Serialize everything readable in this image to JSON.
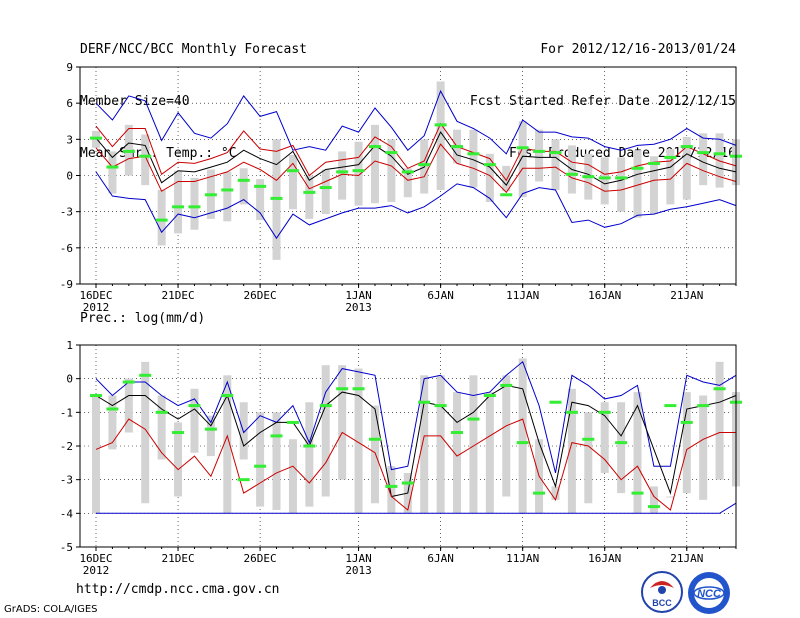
{
  "header": {
    "title": "DERF/NCC/BCC Monthly Forecast",
    "member_size": "Member Size=40",
    "variable": "Mean Surf. Temp.: °C",
    "forecast_period": "For 2012/12/16-2013/01/24",
    "start_refer_date": "Fcst Started Refer Date 2012/12/15",
    "produced_date": "Fcst Produced Date 2012/12/16"
  },
  "footer": {
    "url": "http://cmdp.ncc.cma.gov.cn",
    "credit": "GrADS: COLA/IGES",
    "logo_bcc": "BCC",
    "logo_ncc": "NCC"
  },
  "colors": {
    "ensemble_bar": "#d3d3d3",
    "mean_line": "#000000",
    "spread_line": "#cc0000",
    "extreme_line": "#0000cc",
    "median_mark": "#33ee33",
    "grid": "#000000"
  },
  "chart_data": [
    {
      "type": "line",
      "id": "temperature",
      "title": "Mean Surf. Temp.: °C",
      "days": 40,
      "x_tick_labels": [
        {
          "day": 1,
          "label": "16DEC",
          "sub": "2012"
        },
        {
          "day": 6,
          "label": "21DEC",
          "sub": ""
        },
        {
          "day": 11,
          "label": "26DEC",
          "sub": ""
        },
        {
          "day": 17,
          "label": "1JAN",
          "sub": "2013"
        },
        {
          "day": 22,
          "label": "6JAN",
          "sub": ""
        },
        {
          "day": 27,
          "label": "11JAN",
          "sub": ""
        },
        {
          "day": 32,
          "label": "16JAN",
          "sub": ""
        },
        {
          "day": 37,
          "label": "21JAN",
          "sub": ""
        }
      ],
      "ylim": [
        -9,
        9
      ],
      "y_ticks": [
        -9,
        -6,
        -3,
        0,
        3,
        6,
        9
      ],
      "grid": true,
      "bar_low": [
        2.3,
        -1.5,
        0.0,
        -0.8,
        -5.8,
        -4.8,
        -4.5,
        -3.6,
        -3.8,
        -2.4,
        -3.7,
        -7.0,
        -2.8,
        -3.6,
        -3.2,
        -2.0,
        -2.5,
        -2.3,
        -2.2,
        -1.8,
        -1.5,
        -1.2,
        1.0,
        -1.0,
        -2.2,
        -1.3,
        -1.8,
        -0.5,
        -1.2,
        -1.5,
        -2.0,
        -2.4,
        -3.0,
        -3.5,
        -3.2,
        -2.4,
        -2.0,
        -0.8,
        -1.0,
        -0.8
      ],
      "bar_high": [
        3.7,
        2.0,
        4.2,
        3.4,
        -1.2,
        0.4,
        -0.2,
        0.5,
        0.3,
        0.6,
        -0.3,
        3.0,
        1.7,
        0.0,
        0.5,
        2.0,
        2.8,
        4.2,
        3.0,
        0.6,
        3.0,
        7.8,
        3.8,
        3.8,
        1.8,
        0.8,
        4.5,
        3.8,
        3.0,
        2.5,
        1.8,
        1.5,
        1.5,
        2.1,
        1.6,
        2.2,
        3.2,
        3.5,
        3.5,
        3.0
      ],
      "series": [
        {
          "name": "max",
          "values": [
            6.0,
            4.6,
            6.6,
            6.2,
            2.9,
            5.2,
            3.5,
            3.1,
            4.3,
            6.6,
            4.9,
            5.3,
            2.1,
            2.4,
            2.1,
            4.1,
            3.6,
            5.6,
            4.0,
            2.1,
            3.3,
            7.0,
            4.5,
            3.9,
            3.1,
            1.8,
            4.6,
            3.6,
            3.6,
            3.2,
            3.1,
            2.4,
            2.1,
            2.5,
            2.6,
            3.0,
            3.9,
            3.1,
            3.0,
            2.5
          ]
        },
        {
          "name": "upper",
          "values": [
            4.1,
            2.4,
            3.9,
            3.9,
            0.1,
            1.1,
            1.0,
            1.4,
            1.9,
            3.7,
            2.2,
            2.0,
            2.5,
            0.0,
            1.1,
            1.3,
            1.5,
            3.2,
            2.4,
            0.6,
            1.2,
            4.3,
            2.4,
            1.9,
            1.4,
            -0.4,
            2.3,
            2.0,
            2.0,
            1.1,
            0.9,
            0.1,
            0.3,
            0.8,
            1.1,
            1.2,
            2.4,
            1.8,
            1.2,
            0.8
          ]
        },
        {
          "name": "mean",
          "values": [
            3.1,
            1.5,
            2.7,
            2.5,
            -0.6,
            0.4,
            0.3,
            0.7,
            1.1,
            2.1,
            1.4,
            0.9,
            2.0,
            -0.4,
            0.5,
            0.7,
            0.9,
            2.5,
            1.6,
            0.1,
            0.7,
            3.6,
            1.7,
            1.3,
            0.7,
            -0.8,
            1.6,
            1.5,
            1.5,
            0.5,
            0.1,
            -0.7,
            -0.4,
            0.1,
            0.4,
            0.7,
            1.8,
            1.1,
            0.6,
            0.3
          ]
        },
        {
          "name": "lower",
          "values": [
            2.3,
            0.7,
            1.4,
            1.6,
            -1.3,
            -0.5,
            -0.5,
            -0.1,
            0.3,
            1.1,
            0.5,
            -0.4,
            1.0,
            -1.1,
            -0.5,
            0.1,
            0.0,
            1.2,
            0.8,
            -0.4,
            -0.1,
            2.6,
            1.0,
            0.6,
            0.0,
            -1.4,
            0.6,
            0.6,
            0.7,
            -0.2,
            -0.6,
            -1.3,
            -1.2,
            -0.8,
            -0.4,
            -0.3,
            1.0,
            0.4,
            -0.1,
            -0.5
          ]
        },
        {
          "name": "min",
          "values": [
            0.3,
            -1.7,
            -1.9,
            -2.0,
            -4.7,
            -3.2,
            -3.5,
            -3.1,
            -2.7,
            -2.0,
            -3.1,
            -5.2,
            -3.2,
            -4.1,
            -3.6,
            -3.1,
            -2.7,
            -2.7,
            -2.5,
            -3.1,
            -2.6,
            -1.7,
            -0.7,
            -1.0,
            -1.9,
            -3.5,
            -1.5,
            -1.0,
            -1.2,
            -3.9,
            -3.7,
            -4.3,
            -4.0,
            -3.3,
            -3.2,
            -2.8,
            -2.6,
            -2.3,
            -2.0,
            -2.5
          ]
        },
        {
          "name": "median",
          "values": [
            3.1,
            0.7,
            2.0,
            1.6,
            -3.7,
            -2.6,
            -2.6,
            -1.6,
            -1.2,
            -0.4,
            -0.9,
            -1.9,
            0.4,
            -1.4,
            -1.0,
            0.3,
            0.4,
            2.4,
            1.9,
            0.3,
            0.9,
            4.2,
            2.4,
            1.8,
            0.9,
            -1.6,
            2.3,
            2.0,
            1.9,
            0.1,
            -0.1,
            -0.2,
            -0.2,
            0.6,
            1.0,
            1.5,
            2.4,
            1.9,
            1.8,
            1.6
          ]
        }
      ]
    },
    {
      "type": "line",
      "id": "precipitation",
      "title": "Prec.: log(mm/d)",
      "days": 40,
      "x_tick_labels": [
        {
          "day": 1,
          "label": "16DEC",
          "sub": "2012"
        },
        {
          "day": 6,
          "label": "21DEC",
          "sub": ""
        },
        {
          "day": 11,
          "label": "26DEC",
          "sub": ""
        },
        {
          "day": 17,
          "label": "1JAN",
          "sub": "2013"
        },
        {
          "day": 22,
          "label": "6JAN",
          "sub": ""
        },
        {
          "day": 27,
          "label": "11JAN",
          "sub": ""
        },
        {
          "day": 32,
          "label": "16JAN",
          "sub": ""
        },
        {
          "day": 37,
          "label": "21JAN",
          "sub": ""
        }
      ],
      "ylim": [
        -5,
        1
      ],
      "y_ticks": [
        -5,
        -4,
        -3,
        -2,
        -1,
        0,
        1
      ],
      "grid": true,
      "bar_low": [
        -4.0,
        -2.1,
        -1.6,
        -3.7,
        -2.4,
        -3.5,
        -2.2,
        -2.3,
        -4.0,
        -2.4,
        -3.8,
        -3.9,
        -4.0,
        -3.8,
        -3.5,
        -3.0,
        -4.0,
        -3.7,
        -4.0,
        -4.0,
        -4.0,
        -4.0,
        -4.0,
        -4.0,
        -4.0,
        -3.5,
        -4.0,
        -4.0,
        -3.6,
        -4.0,
        -3.7,
        -2.8,
        -3.4,
        -4.0,
        -4.0,
        -3.5,
        -3.4,
        -3.6,
        -3.0,
        -3.2
      ],
      "bar_high": [
        -0.5,
        -0.5,
        0.0,
        0.5,
        -0.5,
        -1.3,
        -0.3,
        -1.1,
        0.1,
        -0.7,
        -1.0,
        -1.0,
        -1.8,
        -0.7,
        0.4,
        0.4,
        0.3,
        -0.8,
        -2.6,
        -2.8,
        0.1,
        0.1,
        -0.4,
        0.1,
        -0.4,
        0.1,
        0.6,
        -1.8,
        -3.2,
        -0.3,
        -1.0,
        -0.7,
        -0.7,
        -0.4,
        -3.2,
        -3.5,
        -0.4,
        -0.5,
        0.5,
        -0.4
      ],
      "series": [
        {
          "name": "max",
          "values": [
            0.0,
            -0.5,
            -0.1,
            -0.1,
            -0.5,
            -0.8,
            -0.6,
            -1.3,
            -0.1,
            -1.6,
            -1.1,
            -1.3,
            -0.8,
            -1.9,
            -0.4,
            0.3,
            0.2,
            0.1,
            -2.7,
            -2.6,
            0.0,
            0.1,
            -0.4,
            -0.5,
            -0.4,
            0.1,
            0.5,
            -0.8,
            -2.8,
            0.1,
            -0.2,
            -0.6,
            -0.5,
            -0.2,
            -2.6,
            -2.6,
            0.1,
            -0.1,
            -0.2,
            0.1
          ]
        },
        {
          "name": "mean",
          "values": [
            -0.5,
            -0.8,
            -0.5,
            -0.5,
            -0.9,
            -1.2,
            -0.9,
            -1.4,
            -0.5,
            -2.0,
            -1.6,
            -1.3,
            -1.3,
            -2.0,
            -0.8,
            -0.4,
            -0.5,
            -0.9,
            -3.5,
            -3.4,
            -0.7,
            -0.8,
            -1.3,
            -1.0,
            -0.5,
            -0.2,
            -0.3,
            -1.9,
            -3.2,
            -0.7,
            -0.8,
            -1.1,
            -1.7,
            -0.8,
            -2.1,
            -3.4,
            -0.9,
            -0.8,
            -0.7,
            -0.5
          ]
        },
        {
          "name": "lower",
          "values": [
            -2.1,
            -1.9,
            -1.2,
            -1.5,
            -2.2,
            -2.7,
            -2.3,
            -2.9,
            -1.7,
            -3.4,
            -3.1,
            -2.8,
            -2.6,
            -3.1,
            -2.5,
            -1.6,
            -1.9,
            -2.2,
            -3.5,
            -3.9,
            -1.7,
            -1.7,
            -2.3,
            -2.0,
            -1.7,
            -1.4,
            -1.2,
            -2.9,
            -3.6,
            -1.9,
            -2.0,
            -2.4,
            -3.0,
            -2.6,
            -3.5,
            -3.9,
            -2.1,
            -1.8,
            -1.6,
            -1.6
          ]
        },
        {
          "name": "min",
          "values": [
            -4.0,
            -4.0,
            -4.0,
            -4.0,
            -4.0,
            -4.0,
            -4.0,
            -4.0,
            -4.0,
            -4.0,
            -4.0,
            -4.0,
            -4.0,
            -4.0,
            -4.0,
            -4.0,
            -4.0,
            -4.0,
            -4.0,
            -4.0,
            -4.0,
            -4.0,
            -4.0,
            -4.0,
            -4.0,
            -4.0,
            -4.0,
            -4.0,
            -4.0,
            -4.0,
            -4.0,
            -4.0,
            -4.0,
            -4.0,
            -4.0,
            -4.0,
            -4.0,
            -4.0,
            -4.0,
            -3.7
          ]
        },
        {
          "name": "median",
          "values": [
            -0.5,
            -0.9,
            -0.1,
            0.1,
            -1.0,
            -1.6,
            -0.8,
            -1.5,
            -0.5,
            -3.0,
            -2.6,
            -1.7,
            -1.3,
            -2.0,
            -0.8,
            -0.3,
            -0.3,
            -1.8,
            -3.2,
            -3.1,
            -0.7,
            -0.8,
            -1.6,
            -1.2,
            -0.5,
            -0.2,
            -1.9,
            -3.4,
            -0.7,
            -1.0,
            -1.8,
            -1.0,
            -1.9,
            -3.4,
            -3.8,
            -0.8,
            -1.3,
            -0.8,
            -0.3,
            -0.7
          ]
        }
      ]
    }
  ]
}
